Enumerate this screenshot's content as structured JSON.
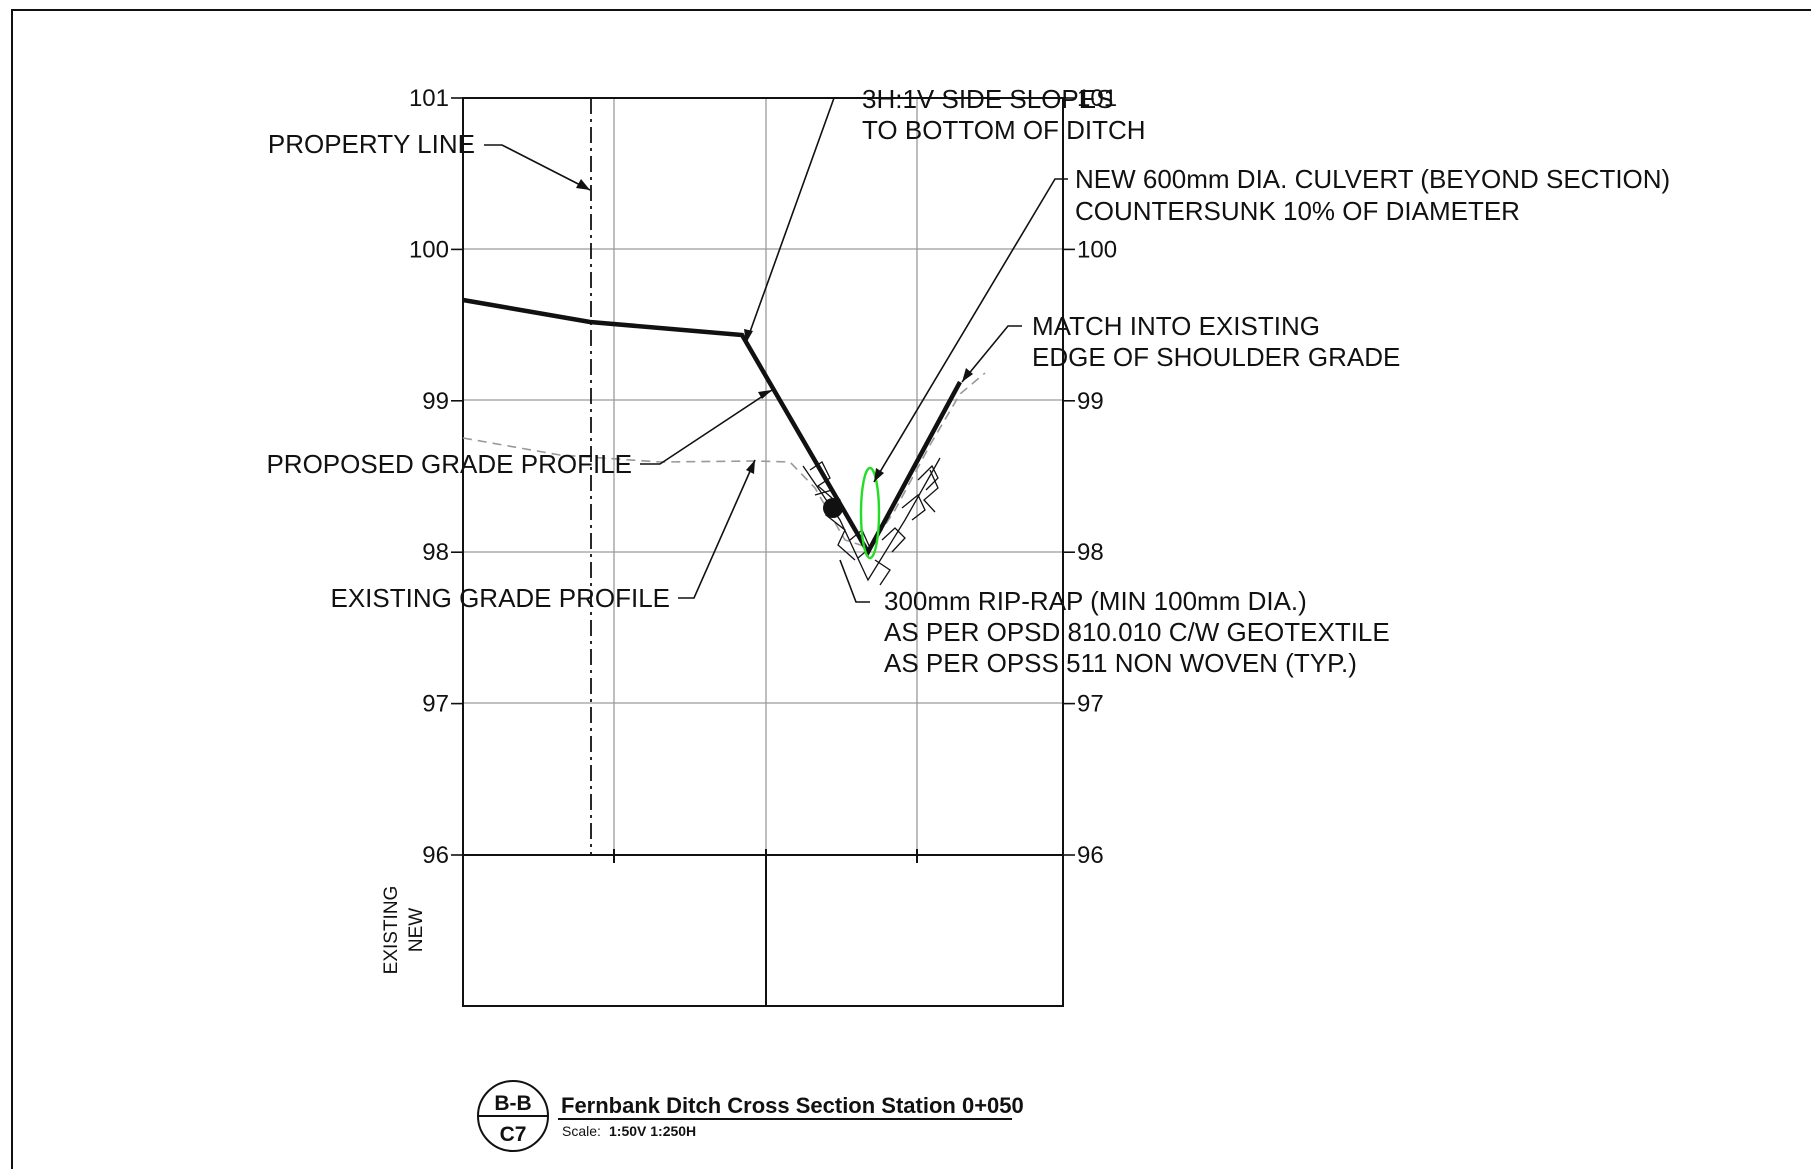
{
  "drawing": {
    "y_ticks": [
      "101",
      "100",
      "99",
      "98",
      "97",
      "96"
    ],
    "y_values": [
      101,
      100,
      99,
      98,
      97,
      96
    ],
    "band_labels": [
      "EXISTING",
      "NEW"
    ],
    "notes": {
      "side_slopes": [
        "3H:1V SIDE SLOPES",
        "TO BOTTOM OF DITCH"
      ],
      "property_line": "PROPERTY LINE",
      "culvert": [
        "NEW 600mm DIA. CULVERT (BEYOND SECTION)",
        "COUNTERSUNK 10% OF DIAMETER"
      ],
      "match_existing": [
        "MATCH INTO EXISTING",
        "EDGE OF SHOULDER GRADE"
      ],
      "proposed_grade": "PROPOSED GRADE PROFILE",
      "existing_grade": "EXISTING GRADE PROFILE",
      "riprap": [
        "300mm RIP-RAP (MIN 100mm DIA.)",
        "AS PER OPSD 810.010 C/W GEOTEXTILE",
        "AS PER OPSS 511 NON WOVEN (TYP.)"
      ]
    },
    "colors": {
      "linework": "#111111",
      "culvert": "#22dd22",
      "existing_dash": "#999999"
    }
  },
  "title_block": {
    "section_id": "B-B",
    "sheet_ref": "C7",
    "title": "Fernbank Ditch Cross Section Station 0+050",
    "scale_label": "Scale:",
    "scale_value": "1:50V 1:250H"
  }
}
